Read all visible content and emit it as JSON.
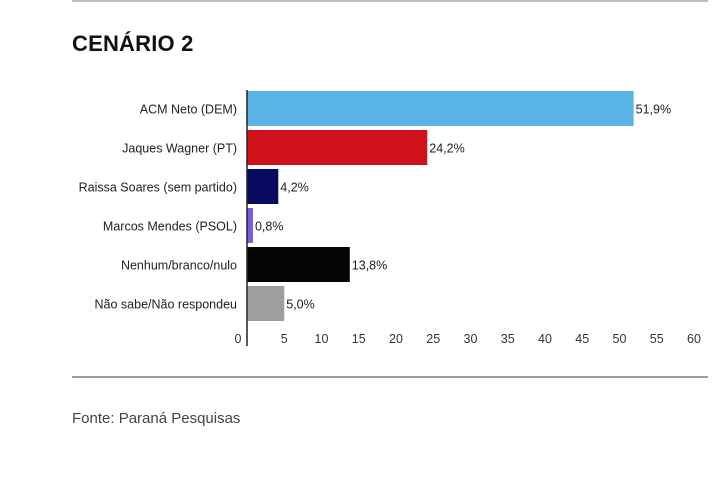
{
  "header": {
    "title": "CENÁRIO 2"
  },
  "footer": {
    "source": "Fonte: Paraná Pesquisas"
  },
  "chart_data": {
    "type": "bar",
    "orientation": "horizontal",
    "categories": [
      "ACM Neto (DEM)",
      "Jaques Wagner (PT)",
      "Raissa Soares (sem partido)",
      "Marcos Mendes (PSOL)",
      "Nenhum/branco/nulo",
      "Não sabe/Não respondeu"
    ],
    "values": [
      51.9,
      24.2,
      4.2,
      0.8,
      13.8,
      5.0
    ],
    "value_labels": [
      "51,9%",
      "24,2%",
      "4,2%",
      "0,8%",
      "13,8%",
      "5,0%"
    ],
    "colors": [
      "#5ab4e5",
      "#d0101a",
      "#080a5e",
      "#7b5ce0",
      "#050505",
      "#9e9e9e"
    ],
    "xlim": [
      0,
      60
    ],
    "xticks": [
      0,
      5,
      10,
      15,
      20,
      25,
      30,
      35,
      40,
      45,
      50,
      55,
      60
    ],
    "grid": false,
    "legend": "none"
  }
}
